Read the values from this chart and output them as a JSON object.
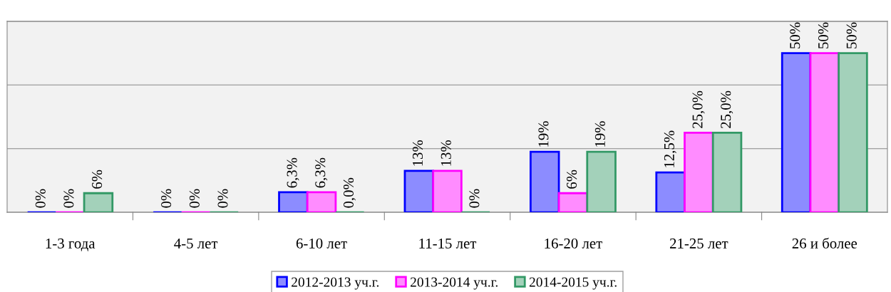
{
  "chart_data": {
    "type": "bar",
    "categories": [
      "1-3 года",
      "4-5 лет",
      "6-10 лет",
      "11-15 лет",
      "16-20 лет",
      "21-25 лет",
      "26 и более"
    ],
    "series": [
      {
        "name": "2012-2013 уч.г.",
        "color": "#0000ff",
        "values": [
          0,
          0,
          6.3,
          13,
          19,
          12.5,
          50
        ],
        "value_labels": [
          "0%",
          "0%",
          "6,3%",
          "13%",
          "19%",
          "12,5%",
          "50%"
        ]
      },
      {
        "name": "2013-2014 уч.г.",
        "color": "#ff00ff",
        "values": [
          0,
          0,
          6.3,
          13,
          6,
          25,
          50
        ],
        "value_labels": [
          "0%",
          "0%",
          "6,3%",
          "13%",
          "6%",
          "25,0%",
          "50%"
        ]
      },
      {
        "name": "2014-2015 уч.г.",
        "color": "#339966",
        "values": [
          6,
          0,
          0,
          0,
          19,
          25,
          50
        ],
        "value_labels": [
          "6%",
          "0%",
          "0,0%",
          "0%",
          "19%",
          "25,0%",
          "50%"
        ]
      }
    ],
    "ylim": [
      0,
      60
    ],
    "yticks": [
      {
        "value": 0,
        "label": null
      },
      {
        "value": 20,
        "label": null
      },
      {
        "value": 40,
        "label": null
      },
      {
        "value": 60,
        "label": null
      }
    ],
    "grid": "y",
    "legend": "bottom",
    "tick_labels": "x"
  }
}
